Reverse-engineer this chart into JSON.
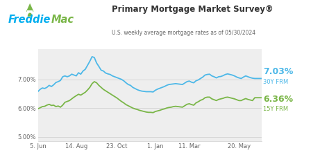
{
  "title": "Primary Mortgage Market Survey®",
  "subtitle": "U.S. weekly average mortgage rates as of 05/30/2024",
  "plot_bg_color": "#eeeeee",
  "line30_color": "#4db8e8",
  "line15_color": "#7ab648",
  "ylim": [
    4.85,
    8.05
  ],
  "ytick_positions": [
    5.0,
    6.0,
    7.0
  ],
  "ytick_labels": [
    "5.00%",
    "6.00%",
    "7.00%"
  ],
  "xtick_labels": [
    "5. Jun",
    "14. Aug",
    "23. Oct",
    "1. Jan",
    "11. Mar",
    "20. May"
  ],
  "xtick_pos": [
    0,
    17,
    35,
    52,
    67,
    89
  ],
  "label30": "7.03%",
  "label30_sub": "30Y FRM",
  "label15": "6.36%",
  "label15_sub": "15Y FRM",
  "freddie_blue": "#00aeef",
  "freddie_green": "#7ab648",
  "freddie_text": "Freddie Mac",
  "x_max": 99,
  "y30": [
    6.57,
    6.65,
    6.7,
    6.68,
    6.72,
    6.79,
    6.75,
    6.81,
    6.89,
    6.92,
    6.96,
    7.09,
    7.12,
    7.09,
    7.12,
    7.18,
    7.15,
    7.12,
    7.23,
    7.18,
    7.29,
    7.35,
    7.49,
    7.63,
    7.79,
    7.76,
    7.57,
    7.45,
    7.32,
    7.29,
    7.22,
    7.19,
    7.17,
    7.12,
    7.09,
    7.06,
    7.03,
    7.0,
    6.95,
    6.88,
    6.82,
    6.79,
    6.72,
    6.68,
    6.64,
    6.61,
    6.59,
    6.58,
    6.57,
    6.57,
    6.57,
    6.56,
    6.62,
    6.66,
    6.69,
    6.72,
    6.75,
    6.79,
    6.82,
    6.83,
    6.84,
    6.85,
    6.84,
    6.83,
    6.82,
    6.87,
    6.92,
    6.94,
    6.9,
    6.88,
    6.95,
    6.98,
    7.03,
    7.08,
    7.15,
    7.17,
    7.18,
    7.12,
    7.09,
    7.05,
    7.09,
    7.1,
    7.13,
    7.17,
    7.19,
    7.17,
    7.15,
    7.12,
    7.08,
    7.05,
    7.03,
    7.08,
    7.12,
    7.09,
    7.06,
    7.04,
    7.03,
    7.03,
    7.03,
    7.03
  ],
  "y15": [
    5.97,
    6.01,
    6.05,
    6.06,
    6.1,
    6.13,
    6.09,
    6.1,
    6.05,
    6.07,
    6.03,
    6.1,
    6.2,
    6.23,
    6.26,
    6.32,
    6.38,
    6.43,
    6.48,
    6.45,
    6.5,
    6.55,
    6.63,
    6.72,
    6.85,
    6.92,
    6.88,
    6.79,
    6.72,
    6.65,
    6.6,
    6.55,
    6.5,
    6.45,
    6.4,
    6.35,
    6.29,
    6.23,
    6.18,
    6.12,
    6.08,
    6.04,
    6.0,
    5.97,
    5.95,
    5.92,
    5.9,
    5.88,
    5.86,
    5.85,
    5.85,
    5.84,
    5.88,
    5.9,
    5.92,
    5.95,
    5.97,
    6.0,
    6.02,
    6.03,
    6.05,
    6.06,
    6.05,
    6.04,
    6.03,
    6.08,
    6.13,
    6.15,
    6.12,
    6.1,
    6.18,
    6.22,
    6.27,
    6.3,
    6.36,
    6.38,
    6.38,
    6.32,
    6.29,
    6.26,
    6.3,
    6.32,
    6.34,
    6.37,
    6.38,
    6.36,
    6.34,
    6.32,
    6.29,
    6.26,
    6.26,
    6.3,
    6.33,
    6.3,
    6.28,
    6.26,
    6.36,
    6.36,
    6.36,
    6.36
  ]
}
